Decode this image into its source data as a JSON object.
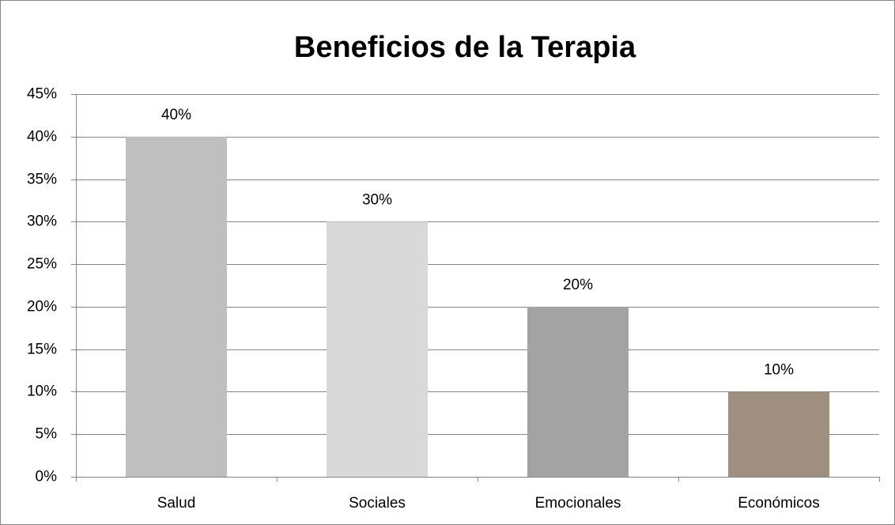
{
  "chart_data": {
    "type": "bar",
    "title": "Beneficios de la Terapia",
    "categories": [
      "Salud",
      "Sociales",
      "Emocionales",
      "Económicos"
    ],
    "values": [
      40,
      30,
      20,
      10
    ],
    "value_labels": [
      "40%",
      "30%",
      "20%",
      "10%"
    ],
    "colors": [
      "#bfbfbf",
      "#d9d9d9",
      "#a3a3a3",
      "#9e8f80"
    ],
    "ylim": [
      0,
      45
    ],
    "yticks": [
      {
        "value": 0,
        "label": "0%"
      },
      {
        "value": 5,
        "label": "5%"
      },
      {
        "value": 10,
        "label": "10%"
      },
      {
        "value": 15,
        "label": "15%"
      },
      {
        "value": 20,
        "label": "20%"
      },
      {
        "value": 25,
        "label": "25%"
      },
      {
        "value": 30,
        "label": "30%"
      },
      {
        "value": 35,
        "label": "35%"
      },
      {
        "value": 40,
        "label": "40%"
      },
      {
        "value": 45,
        "label": "45%"
      }
    ],
    "grid": true
  }
}
